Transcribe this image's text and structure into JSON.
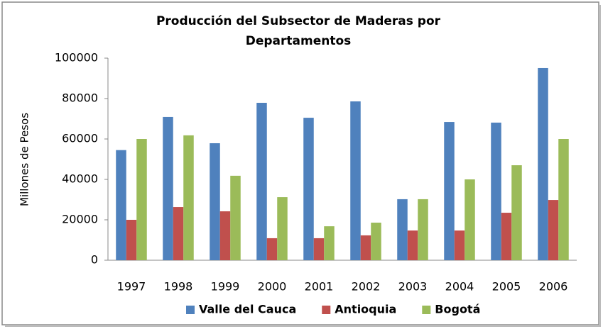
{
  "chart_data": {
    "type": "bar",
    "title": "Producción del Subsector de Maderas por Departamentos",
    "y_label": "Millones de Pesos",
    "categories": [
      "1997",
      "1998",
      "1999",
      "2000",
      "2001",
      "2002",
      "2003",
      "2004",
      "2005",
      "2006"
    ],
    "series": [
      {
        "name": "Valle del Cauca",
        "color": "#4f81bd",
        "values": [
          54500,
          70900,
          57900,
          77900,
          70500,
          78600,
          30200,
          68400,
          68100,
          95100
        ]
      },
      {
        "name": "Antioquia",
        "color": "#c0504d",
        "values": [
          20000,
          26300,
          24200,
          10900,
          10900,
          12300,
          14700,
          14700,
          23500,
          29800
        ]
      },
      {
        "name": "Bogotá",
        "color": "#9bbb59",
        "values": [
          60000,
          61800,
          41800,
          31200,
          16800,
          18600,
          30200,
          40000,
          47000,
          60000
        ]
      }
    ],
    "ylim": [
      0,
      100000
    ],
    "yticks": [
      0,
      20000,
      40000,
      60000,
      80000,
      100000
    ],
    "grid": false,
    "legend": "bottom"
  }
}
